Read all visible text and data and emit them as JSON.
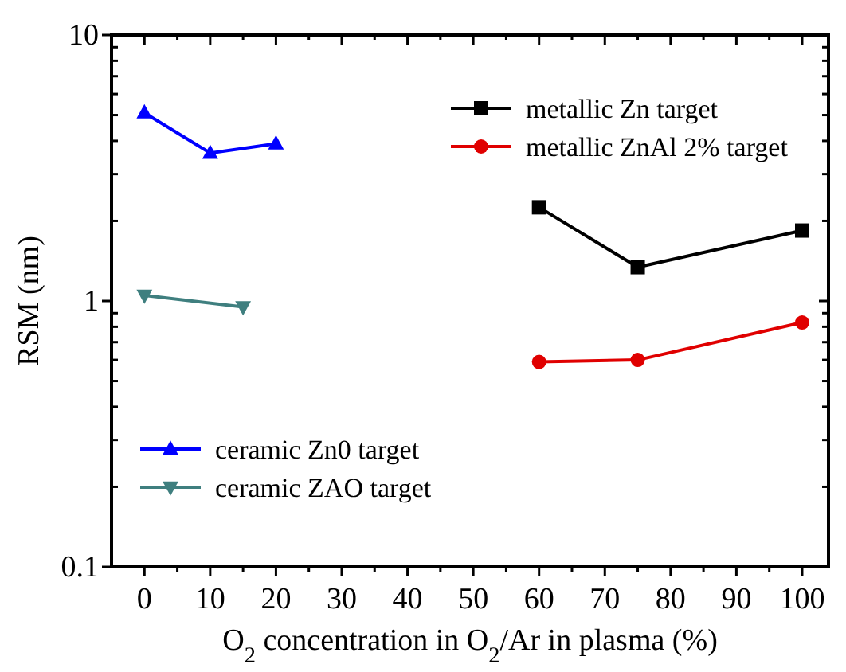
{
  "chart_data": {
    "type": "line",
    "xlabel": "O$_{2}$ concentration in O$_{2}$/Ar in plasma (%)",
    "ylabel": "RSM (nm)",
    "log": "y",
    "xlim": [
      -5,
      104
    ],
    "ylim": [
      0.1,
      10
    ],
    "xticks": [
      0,
      10,
      20,
      30,
      40,
      50,
      60,
      70,
      80,
      90,
      100
    ],
    "yticks": [
      0.1,
      1,
      10
    ],
    "grid": false,
    "legend": "top right",
    "series": [
      {
        "name": "metallic Zn target",
        "color": "#000000",
        "marker": "square",
        "x": [
          60,
          75,
          100
        ],
        "values": [
          2.25,
          1.34,
          1.84
        ]
      },
      {
        "name": "metallic ZnAl 2% target",
        "color": "#e00000",
        "marker": "circle",
        "x": [
          60,
          75,
          100
        ],
        "values": [
          0.59,
          0.6,
          0.83
        ]
      },
      {
        "name": "ceramic Zn0 target",
        "color": "#0000ff",
        "marker": "triangle",
        "x": [
          0,
          10,
          20
        ],
        "values": [
          5.1,
          3.6,
          3.9
        ]
      },
      {
        "name": "ceramic ZAO target",
        "color": "#3f7f7f",
        "marker": "triangle-down",
        "x": [
          0,
          15
        ],
        "values": [
          1.05,
          0.95
        ]
      }
    ]
  }
}
